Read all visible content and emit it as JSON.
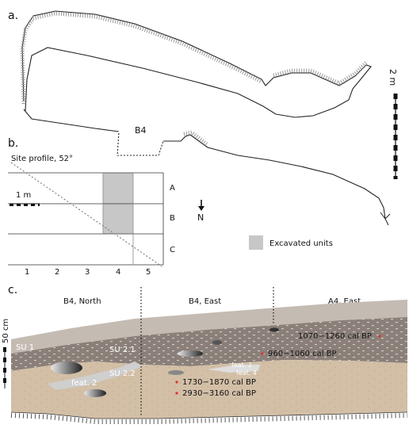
{
  "panels": {
    "a": "a.",
    "b": "b.",
    "c": "c."
  },
  "plan": {
    "area_label": "B4",
    "scale_label": "2 m",
    "north_label": "N"
  },
  "grid": {
    "site_profile_label": "Site profile, 52°",
    "row_labels": [
      "A",
      "B",
      "C"
    ],
    "col_labels": [
      "1",
      "2",
      "3",
      "4",
      "5"
    ],
    "scale_label": "1 m",
    "legend_label": "Excavated units",
    "colors": {
      "excavated": "#c7c7c7"
    }
  },
  "profile": {
    "section_labels": [
      "B4, North",
      "B4, East",
      "A4, East"
    ],
    "scale_label": "50 cm",
    "units": [
      "SU 1",
      "SU 2.1",
      "SU 2.2"
    ],
    "features": [
      "feat. 2",
      "feat. 2",
      "feat. 4"
    ],
    "dates": [
      "1070−1260 cal BP",
      "960−1060 cal BP",
      "1730−1870 cal BP",
      "2930−3160 cal BP"
    ],
    "colors": {
      "su1": "#8b8079",
      "su2": "#d2bfa6",
      "top": "#c4bbb3",
      "date_marker": "#e0312e"
    }
  }
}
